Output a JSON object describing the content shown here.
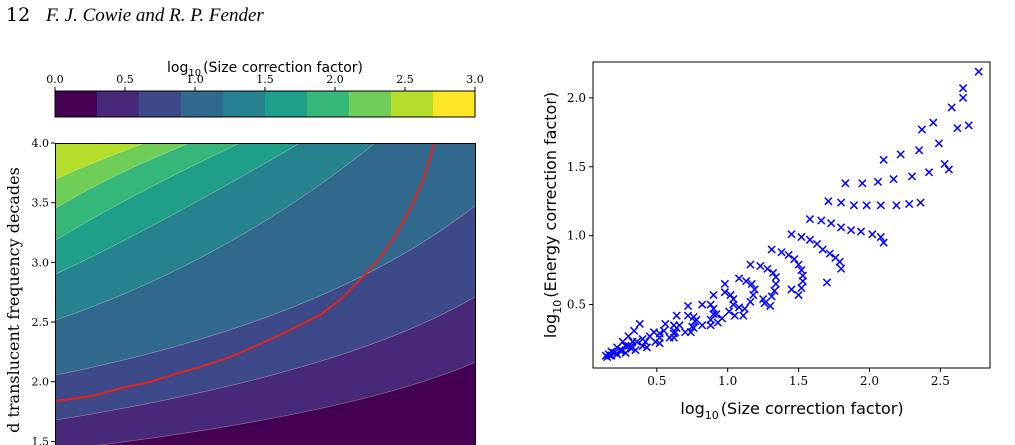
{
  "header": {
    "page_number": "12",
    "authors": "F. J. Cowie and R. P. Fender"
  },
  "chart_data": [
    {
      "type": "contour",
      "colorbar": {
        "label_prefix": "log",
        "label_sub": "10",
        "label_rest": "(Size correction factor)",
        "ticks": [
          0.0,
          0.5,
          1.0,
          1.5,
          2.0,
          2.5,
          3.0
        ],
        "tick_labels": [
          "0.0",
          "0.5",
          "1.0",
          "1.5",
          "2.0",
          "2.5",
          "3.0"
        ],
        "colors": [
          "#440154",
          "#482878",
          "#3e4989",
          "#31688e",
          "#26828e",
          "#1f9e89",
          "#35b779",
          "#6ece58",
          "#b5de2b",
          "#fde725"
        ],
        "range": [
          0.0,
          3.0
        ]
      },
      "ylabel": "d translucent frequency decades",
      "y_ticks": [
        1.5,
        2.0,
        2.5,
        3.0,
        3.5,
        4.0
      ],
      "y_tick_labels": [
        "1.5",
        "2.0",
        "2.5",
        "3.0",
        "3.5",
        "4.0"
      ],
      "ylim": [
        1.47,
        4.0
      ],
      "highlight_contour_color": "#d62728"
    },
    {
      "type": "scatter",
      "marker": "x",
      "color": "#0000ff",
      "xlabel_prefix": "log",
      "xlabel_sub": "10",
      "xlabel_rest": "(Size correction factor)",
      "ylabel_prefix": "log",
      "ylabel_sub": "10",
      "ylabel_rest": "(Energy correction factor)",
      "xlim": [
        0.05,
        2.85
      ],
      "ylim": [
        0.04,
        2.26
      ],
      "x_ticks": [
        0.5,
        1.0,
        1.5,
        2.0,
        2.5
      ],
      "x_tick_labels": [
        "0.5",
        "1.0",
        "1.5",
        "2.0",
        "2.5"
      ],
      "y_ticks": [
        0.5,
        1.0,
        1.5,
        2.0
      ],
      "y_tick_labels": [
        "0.5",
        "1.0",
        "1.5",
        "2.0"
      ],
      "arcs": [
        {
          "x": [
            0.14,
            0.18,
            0.22,
            0.26,
            0.3,
            0.34,
            0.38
          ],
          "y": [
            0.13,
            0.16,
            0.19,
            0.23,
            0.27,
            0.31,
            0.36
          ]
        },
        {
          "x": [
            0.18,
            0.25,
            0.32,
            0.4,
            0.48,
            0.56,
            0.64,
            0.72
          ],
          "y": [
            0.13,
            0.16,
            0.2,
            0.25,
            0.3,
            0.36,
            0.42,
            0.49
          ]
        },
        {
          "x": [
            0.22,
            0.32,
            0.42,
            0.52,
            0.62,
            0.72,
            0.82,
            0.9,
            0.98
          ],
          "y": [
            0.14,
            0.18,
            0.23,
            0.29,
            0.35,
            0.42,
            0.5,
            0.57,
            0.65
          ]
        },
        {
          "x": [
            0.28,
            0.4,
            0.52,
            0.64,
            0.76,
            0.88,
            0.98,
            1.08,
            1.16
          ],
          "y": [
            0.15,
            0.2,
            0.26,
            0.33,
            0.41,
            0.5,
            0.59,
            0.69,
            0.79
          ]
        },
        {
          "x": [
            0.35,
            0.49,
            0.63,
            0.77,
            0.9,
            1.02,
            1.13,
            1.23,
            1.31
          ],
          "y": [
            0.17,
            0.23,
            0.3,
            0.38,
            0.47,
            0.57,
            0.67,
            0.78,
            0.9
          ]
        },
        {
          "x": [
            0.43,
            0.59,
            0.75,
            0.9,
            1.04,
            1.17,
            1.28,
            1.38,
            1.45
          ],
          "y": [
            0.19,
            0.26,
            0.34,
            0.43,
            0.54,
            0.65,
            0.76,
            0.88,
            1.01
          ]
        },
        {
          "x": [
            0.52,
            0.7,
            0.88,
            1.04,
            1.19,
            1.32,
            1.43,
            1.52,
            1.58
          ],
          "y": [
            0.22,
            0.3,
            0.39,
            0.5,
            0.61,
            0.73,
            0.86,
            0.99,
            1.12
          ]
        },
        {
          "x": [
            0.62,
            0.82,
            1.01,
            1.18,
            1.34,
            1.47,
            1.58,
            1.66,
            1.71
          ],
          "y": [
            0.26,
            0.35,
            0.45,
            0.57,
            0.7,
            0.83,
            0.97,
            1.11,
            1.25
          ]
        },
        {
          "x": [
            0.74,
            0.96,
            1.16,
            1.34,
            1.5,
            1.63,
            1.73,
            1.8,
            1.83
          ],
          "y": [
            0.3,
            0.4,
            0.52,
            0.65,
            0.79,
            0.94,
            1.09,
            1.24,
            1.38
          ]
        },
        {
          "x": [
            0.88,
            1.12,
            1.33,
            1.52,
            1.67,
            1.8,
            1.89,
            1.95
          ],
          "y": [
            0.35,
            0.47,
            0.6,
            0.75,
            0.9,
            1.06,
            1.22,
            1.38
          ]
        },
        {
          "x": [
            1.05,
            1.31,
            1.53,
            1.72,
            1.87,
            1.98,
            2.06,
            2.1
          ],
          "y": [
            0.42,
            0.56,
            0.71,
            0.87,
            1.04,
            1.22,
            1.39,
            1.55
          ]
        },
        {
          "x": [
            1.26,
            1.53,
            1.76,
            1.94,
            2.08,
            2.17,
            2.22
          ],
          "y": [
            0.51,
            0.67,
            0.84,
            1.03,
            1.22,
            1.41,
            1.59
          ]
        },
        {
          "x": [
            1.52,
            1.79,
            2.02,
            2.19,
            2.3,
            2.35,
            2.37
          ],
          "y": [
            0.62,
            0.81,
            1.01,
            1.22,
            1.43,
            1.62,
            1.77
          ]
        },
        {
          "x": [
            1.8,
            2.08,
            2.28,
            2.42,
            2.49
          ],
          "y": [
            0.76,
            0.99,
            1.23,
            1.46,
            1.67
          ]
        },
        {
          "x": [
            2.1,
            2.36,
            2.53,
            2.62,
            2.66
          ],
          "y": [
            0.95,
            1.24,
            1.52,
            1.78,
            2.0
          ]
        },
        {
          "x": [
            2.56,
            2.7,
            2.77
          ],
          "y": [
            1.48,
            1.8,
            2.19
          ]
        },
        {
          "x": [
            0.15,
            0.16,
            0.17,
            0.2,
            0.24,
            0.28,
            0.33
          ],
          "y": [
            0.12,
            0.14,
            0.13,
            0.15,
            0.17,
            0.2,
            0.23
          ]
        },
        {
          "x": [
            0.25,
            0.3,
            0.36,
            0.45,
            0.55,
            0.66,
            0.78,
            0.92,
            1.08,
            1.25,
            1.45
          ],
          "y": [
            0.17,
            0.2,
            0.23,
            0.27,
            0.31,
            0.35,
            0.39,
            0.43,
            0.48,
            0.54,
            0.61
          ]
        },
        {
          "x": [
            0.62,
            0.76,
            0.93,
            1.11,
            1.3,
            1.5,
            1.7
          ],
          "y": [
            0.29,
            0.33,
            0.37,
            0.42,
            0.49,
            0.57,
            0.66
          ]
        },
        {
          "x": [
            2.45,
            2.58,
            2.66
          ],
          "y": [
            1.82,
            1.93,
            2.07
          ]
        }
      ]
    }
  ]
}
